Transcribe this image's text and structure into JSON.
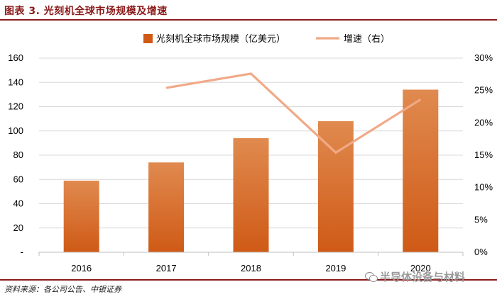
{
  "figure": {
    "title": "图表 3. 光刻机全球市场规模及增速",
    "source": "资料来源：各公司公告、中银证券",
    "watermark": "半导体设备与材料"
  },
  "colors": {
    "bar_top": "#e08a4f",
    "bar_bottom": "#cf5a16",
    "line": "#f1a987",
    "frame": "#8b1a1a",
    "grid": "#d9d9d9"
  },
  "chart_data": {
    "type": "bar",
    "categories": [
      "2016",
      "2017",
      "2018",
      "2019",
      "2020"
    ],
    "series": [
      {
        "name": "光刻机全球市场规模（亿美元）",
        "type": "bar",
        "axis": "left",
        "values": [
          59,
          74,
          94,
          108,
          134
        ]
      },
      {
        "name": "增速（右）",
        "type": "line",
        "axis": "right",
        "values": [
          null,
          25.4,
          27.6,
          15.4,
          23.6
        ]
      }
    ],
    "ylim": [
      0,
      160
    ],
    "yticks": [
      0,
      20,
      40,
      60,
      80,
      100,
      120,
      140,
      160
    ],
    "ytick_labels": [
      "-",
      "20",
      "40",
      "60",
      "80",
      "100",
      "120",
      "140",
      "160"
    ],
    "y2lim": [
      0,
      30
    ],
    "y2ticks": [
      0,
      5,
      10,
      15,
      20,
      25,
      30
    ],
    "y2tick_labels": [
      "0%",
      "5%",
      "10%",
      "15%",
      "20%",
      "25%",
      "30%"
    ],
    "grid": true,
    "legend_position": "top-center"
  }
}
